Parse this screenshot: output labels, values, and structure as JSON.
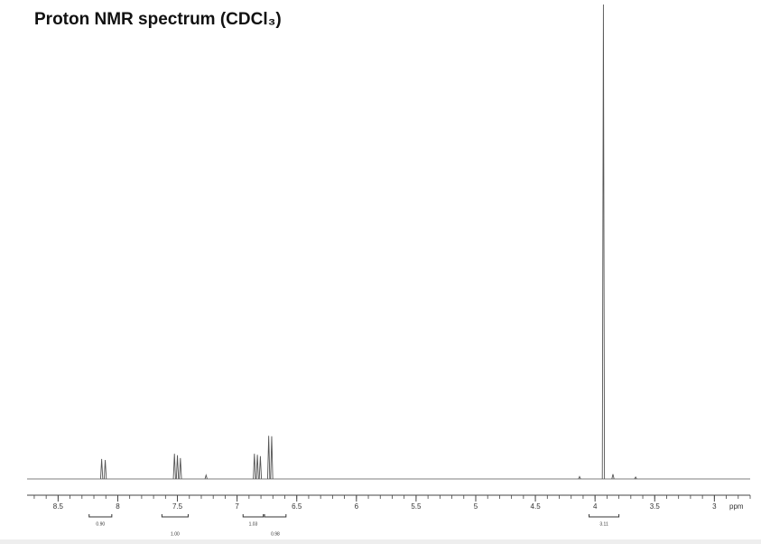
{
  "chart_data": {
    "type": "nmr",
    "title": "Proton NMR spectrum (CDCl₃)",
    "x_label": "ppm",
    "xlim": [
      8.76,
      2.7
    ],
    "xticks": [
      8.5,
      8.0,
      7.5,
      7.0,
      6.5,
      6.0,
      5.5,
      5.0,
      4.5,
      4.0,
      3.5,
      3.0
    ],
    "minor_tick_step": 0.1,
    "ylim": [
      0,
      100
    ],
    "color": "#555555",
    "peaks": {
      "x": [
        8.135,
        8.105,
        7.525,
        7.5,
        7.475,
        7.26,
        6.855,
        6.83,
        6.805,
        6.735,
        6.71,
        4.13,
        3.93,
        3.85,
        3.66
      ],
      "values": [
        4.2,
        4.0,
        5.3,
        5.0,
        4.4,
        0.8,
        5.3,
        5.1,
        4.8,
        9.1,
        9.0,
        0.5,
        100,
        1.0,
        0.4
      ]
    },
    "integrals": {
      "from": [
        8.24,
        7.63,
        6.95,
        6.77,
        4.05
      ],
      "to": [
        8.05,
        7.41,
        6.78,
        6.59,
        3.8
      ],
      "values": [
        0.9,
        1,
        1.03,
        0.98,
        3.11
      ],
      "value_labels": [
        "0.90",
        "1.00",
        "1.03",
        "0.98",
        "3.11"
      ]
    }
  }
}
